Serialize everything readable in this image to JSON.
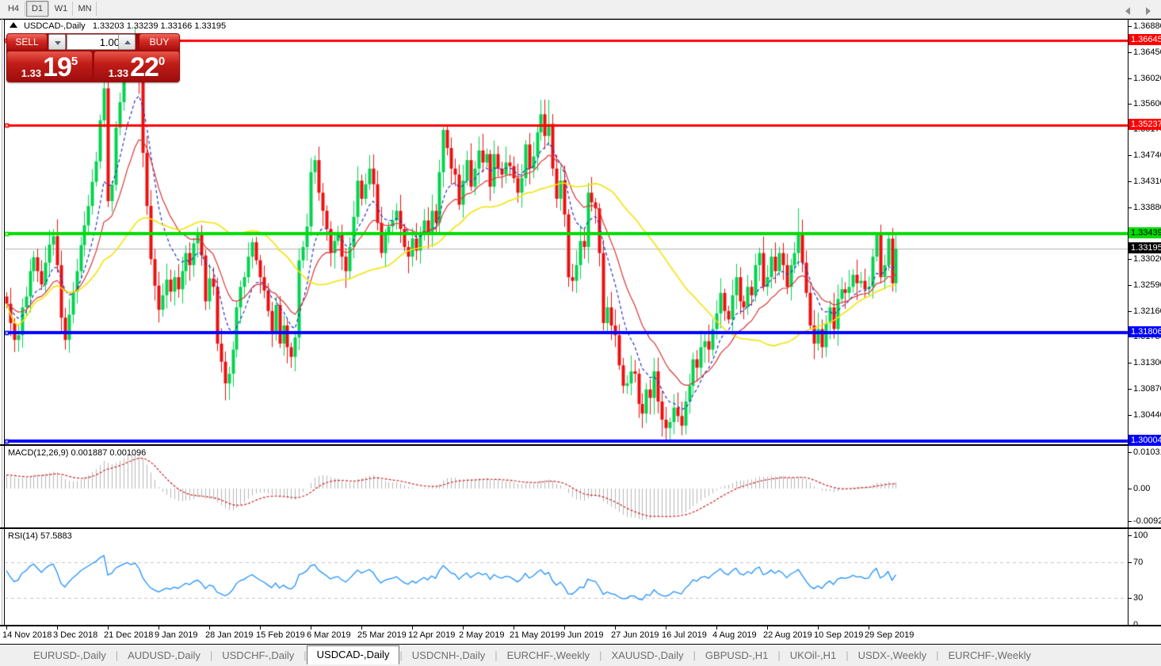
{
  "toolbar": {
    "timeframes": [
      {
        "label": "H4",
        "active": false
      },
      {
        "label": "D1",
        "active": true
      },
      {
        "label": "W1",
        "active": false
      },
      {
        "label": "MN",
        "active": false
      }
    ]
  },
  "title": {
    "symbol": "USDCAD-,Daily",
    "ohlc": "1.33203 1.33239 1.33166 1.33195"
  },
  "trade_panel": {
    "sell_label": "SELL",
    "buy_label": "BUY",
    "volume": "1.00",
    "sell_price_small": "1.33",
    "sell_price_big": "19",
    "sell_price_sup": "5",
    "buy_price_small": "1.33",
    "buy_price_big": "22",
    "buy_price_sup": "0"
  },
  "chart_data": {
    "type": "candlestick",
    "symbol": "USDCAD",
    "timeframe": "Daily",
    "colors": {
      "bull": "#00d44e",
      "bear": "#ee0f0f",
      "ma_fast": "#2733c8",
      "ma_mid": "#d83434",
      "ma_slow": "#f2e205",
      "macd_hist": "#b6b6b6",
      "macd_signal": "#cc2222",
      "rsi_line": "#1E90FF",
      "current_price_line": "#b0b0b0"
    },
    "closes": [
      1.3228,
      1.3196,
      1.3168,
      1.3176,
      1.3222,
      1.324,
      1.3282,
      1.3305,
      1.3282,
      1.326,
      1.3296,
      1.3326,
      1.334,
      1.3292,
      1.3205,
      1.3168,
      1.321,
      1.3248,
      1.3282,
      1.3325,
      1.3358,
      1.339,
      1.343,
      1.3464,
      1.3532,
      1.3585,
      1.3398,
      1.3425,
      1.352,
      1.3562,
      1.3605,
      1.3642,
      1.362,
      1.3655,
      1.36,
      1.3478,
      1.339,
      1.3302,
      1.3258,
      1.3218,
      1.3242,
      1.3268,
      1.3248,
      1.3272,
      1.3252,
      1.3282,
      1.3312,
      1.3292,
      1.3328,
      1.3345,
      1.3308,
      1.3232,
      1.327,
      1.3256,
      1.3162,
      1.3132,
      1.3096,
      1.3112,
      1.3152,
      1.3222,
      1.3256,
      1.3272,
      1.3306,
      1.333,
      1.33,
      1.3272,
      1.325,
      1.3216,
      1.3182,
      1.3226,
      1.3162,
      1.3192,
      1.3156,
      1.314,
      1.3172,
      1.33,
      1.3322,
      1.3356,
      1.3446,
      1.3466,
      1.3412,
      1.3382,
      1.3352,
      1.3312,
      1.3332,
      1.3342,
      1.3306,
      1.3282,
      1.3322,
      1.3372,
      1.3432,
      1.3402,
      1.3426,
      1.3452,
      1.3426,
      1.3362,
      1.3312,
      1.3342,
      1.3356,
      1.3366,
      1.3382,
      1.3352,
      1.3322,
      1.3306,
      1.3336,
      1.3316,
      1.3342,
      1.3366,
      1.3346,
      1.3382,
      1.3362,
      1.3446,
      1.3516,
      1.3486,
      1.3452,
      1.3442,
      1.3392,
      1.3432,
      1.3466,
      1.3422,
      1.3452,
      1.3482,
      1.3462,
      1.3476,
      1.3422,
      1.3476,
      1.3452,
      1.3442,
      1.3462,
      1.3456,
      1.3436,
      1.3412,
      1.3436,
      1.3492,
      1.3452,
      1.3472,
      1.3512,
      1.3542,
      1.3506,
      1.3526,
      1.3452,
      1.3402,
      1.3432,
      1.3376,
      1.3272,
      1.3266,
      1.3292,
      1.3332,
      1.3322,
      1.3412,
      1.3396,
      1.3386,
      1.3312,
      1.3196,
      1.3222,
      1.3192,
      1.3176,
      1.3126,
      1.3092,
      1.3096,
      1.3116,
      1.3112,
      1.3062,
      1.3046,
      1.3086,
      1.3072,
      1.3116,
      1.3066,
      1.3036,
      1.3022,
      1.3032,
      1.3056,
      1.3042,
      1.3026,
      1.3066,
      1.3092,
      1.3136,
      1.3122,
      1.3156,
      1.3166,
      1.3152,
      1.3186,
      1.3212,
      1.3246,
      1.3216,
      1.3202,
      1.3242,
      1.3272,
      1.3232,
      1.3222,
      1.3256,
      1.3242,
      1.3292,
      1.3312,
      1.3256,
      1.3272,
      1.3306,
      1.3282,
      1.3312,
      1.3292,
      1.3256,
      1.3292,
      1.3312,
      1.3342,
      1.3296,
      1.3246,
      1.3192,
      1.3162,
      1.3186,
      1.3156,
      1.3196,
      1.3222,
      1.3186,
      1.3236,
      1.3252,
      1.3246,
      1.3256,
      1.3276,
      1.3262,
      1.3266,
      1.3252,
      1.3256,
      1.3306,
      1.3342,
      1.3272,
      1.3292,
      1.3336,
      1.3262,
      1.33195
    ],
    "high_overrides": {
      "12": 1.3352,
      "31": 1.3668,
      "33": 1.3686,
      "78": 1.347,
      "112": 1.3521,
      "139": 1.3566,
      "149": 1.3428,
      "203": 1.3386,
      "223": 1.3347,
      "226": 1.3342
    },
    "low_overrides": {
      "2": 1.3148,
      "15": 1.3152,
      "26": 1.3388,
      "54": 1.315,
      "56": 1.3068,
      "73": 1.3122,
      "144": 1.3256,
      "168": 1.3008,
      "169": 1.3002,
      "173": 1.301,
      "207": 1.3136,
      "209": 1.3138,
      "224": 1.3262
    },
    "moving_averages": [
      {
        "name": "fast",
        "method": "ema",
        "period": 9,
        "dashed": true
      },
      {
        "name": "mid",
        "method": "ema",
        "period": 18,
        "dashed": false
      },
      {
        "name": "slow",
        "method": "sma",
        "period": 45,
        "dashed": false
      }
    ],
    "hlines": [
      {
        "price": 1.36645,
        "color": "#fe0000",
        "width": 3,
        "label": "1.36645",
        "label_bg": "#fe0000",
        "label_fg": "#ffffff"
      },
      {
        "price": 1.35237,
        "color": "#fe0000",
        "width": 3,
        "label": "1.35237",
        "label_bg": "#fe0000",
        "label_fg": "#ffffff"
      },
      {
        "price": 1.33439,
        "color": "#00dc00",
        "width": 4,
        "label": "1.33439",
        "label_bg": "#00dc00",
        "label_fg": "#000000"
      },
      {
        "price": 1.31806,
        "color": "#0000fe",
        "width": 4,
        "label": "1.31806",
        "label_bg": "#0000fe",
        "label_fg": "#ffffff"
      },
      {
        "price": 1.30004,
        "color": "#0000fe",
        "width": 4,
        "label": "1.30004",
        "label_bg": "#0000fe",
        "label_fg": "#ffffff"
      }
    ],
    "current_price": {
      "value": 1.33195,
      "label": "1.33195",
      "label_bg": "#000000",
      "label_fg": "#ffffff"
    },
    "price_axis_ticks": [
      "1.36880",
      "1.36450",
      "1.36020",
      "1.35600",
      "1.35170",
      "1.34740",
      "1.34310",
      "1.33880",
      "1.33450",
      "1.33020",
      "1.32590",
      "1.32160",
      "1.31730",
      "1.31300",
      "1.30870",
      "1.30440"
    ],
    "date_labels": [
      "14 Nov 2018",
      "3 Dec 2018",
      "21 Dec 2018",
      "9 Jan 2019",
      "28 Jan 2019",
      "15 Feb 2019",
      "6 Mar 2019",
      "25 Mar 2019",
      "12 Apr 2019",
      "2 May 2019",
      "21 May 2019",
      "9 Jun 2019",
      "27 Jun 2019",
      "16 Jul 2019",
      "4 Aug 2019",
      "22 Aug 2019",
      "10 Sep 2019",
      "29 Sep 2019"
    ],
    "date_label_step": 13
  },
  "macd": {
    "label": "MACD(12,26,9) 0.001887 0.001096",
    "params": {
      "fast": 12,
      "slow": 26,
      "signal": 9
    },
    "values_shown": [
      "0.001887",
      "0.001096"
    ],
    "scale": [
      "0.010311",
      "0.00",
      "-0.009203"
    ]
  },
  "rsi": {
    "label": "RSI(14) 57.5883",
    "period": 14,
    "value_shown": "57.5883",
    "scale": [
      "100",
      "70",
      "30",
      "0"
    ],
    "levels": [
      70,
      30
    ]
  },
  "tabs": {
    "items": [
      {
        "label": "EURUSD-,Daily",
        "active": false
      },
      {
        "label": "AUDUSD-,Daily",
        "active": false
      },
      {
        "label": "USDCHF-,Daily",
        "active": false
      },
      {
        "label": "USDCAD-,Daily",
        "active": true
      },
      {
        "label": "USDCNH-,Daily",
        "active": false
      },
      {
        "label": "EURCHF-,Weekly",
        "active": false
      },
      {
        "label": "XAUUSD-,Daily",
        "active": false
      },
      {
        "label": "GBPUSD-,H1",
        "active": false
      },
      {
        "label": "UKOil-,H1",
        "active": false
      },
      {
        "label": "USDX-,Weekly",
        "active": false
      },
      {
        "label": "EURCHF-,Weekly",
        "active": false
      }
    ]
  }
}
